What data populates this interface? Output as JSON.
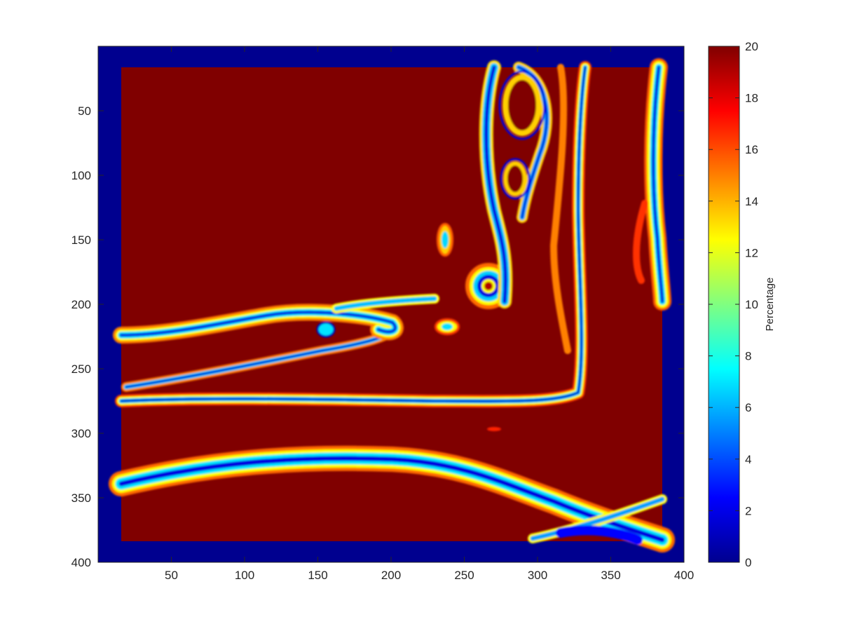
{
  "chart_data": {
    "type": "heatmap",
    "title": "",
    "xlabel": "",
    "ylabel": "",
    "x_range": [
      1,
      400
    ],
    "y_range": [
      1,
      400
    ],
    "y_direction": "reversed",
    "x_ticks": [
      "50",
      "100",
      "150",
      "200",
      "250",
      "300",
      "350",
      "400"
    ],
    "y_ticks": [
      "50",
      "100",
      "150",
      "200",
      "250",
      "300",
      "350",
      "400"
    ],
    "colormap": "jet",
    "colorbar": {
      "label": "Percentage",
      "range": [
        0,
        20
      ],
      "ticks": [
        "0",
        "2",
        "4",
        "6",
        "8",
        "10",
        "12",
        "14",
        "16",
        "18",
        "20"
      ]
    },
    "field": {
      "border_value": 0,
      "interior_extent": {
        "x": [
          16,
          385
        ],
        "y": [
          16,
          382
        ]
      },
      "background_value": 20
    },
    "colors": {
      "jet_low": "#00008f",
      "jet_high": "#800000",
      "axis": "#262626"
    }
  }
}
